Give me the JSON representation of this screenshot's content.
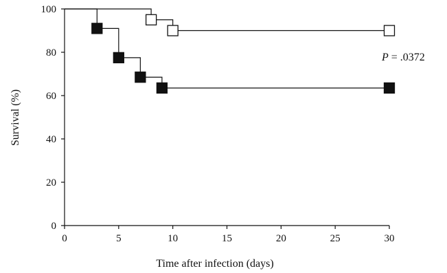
{
  "chart_data": {
    "type": "line",
    "subtype": "kaplan-meier step survival curve",
    "title": "",
    "xlabel": "Time after infection (days)",
    "ylabel": "Survival (%)",
    "xlim": [
      0,
      30
    ],
    "ylim": [
      0,
      100
    ],
    "xticks": [
      0,
      5,
      10,
      15,
      20,
      25,
      30
    ],
    "yticks": [
      0,
      20,
      40,
      60,
      80,
      100
    ],
    "grid": false,
    "legend": "none",
    "annotation": {
      "italic": "P",
      "rest": " = .0372",
      "position": "right, between the two curves"
    },
    "series": [
      {
        "marker": "open-square",
        "color": "#111111",
        "steps": [
          {
            "x": 0,
            "y": 100
          },
          {
            "x": 8,
            "y": 95
          },
          {
            "x": 10,
            "y": 90
          },
          {
            "x": 30,
            "y": 90
          }
        ],
        "markers": [
          {
            "x": 8,
            "y": 95
          },
          {
            "x": 10,
            "y": 90
          },
          {
            "x": 30,
            "y": 90
          }
        ]
      },
      {
        "marker": "filled-square",
        "color": "#111111",
        "steps": [
          {
            "x": 0,
            "y": 100
          },
          {
            "x": 3,
            "y": 91
          },
          {
            "x": 5,
            "y": 77.5
          },
          {
            "x": 7,
            "y": 68.5
          },
          {
            "x": 9,
            "y": 63.5
          },
          {
            "x": 30,
            "y": 63.5
          }
        ],
        "markers": [
          {
            "x": 3,
            "y": 91
          },
          {
            "x": 5,
            "y": 77.5
          },
          {
            "x": 7,
            "y": 68.5
          },
          {
            "x": 9,
            "y": 63.5
          },
          {
            "x": 30,
            "y": 63.5
          }
        ]
      }
    ]
  }
}
